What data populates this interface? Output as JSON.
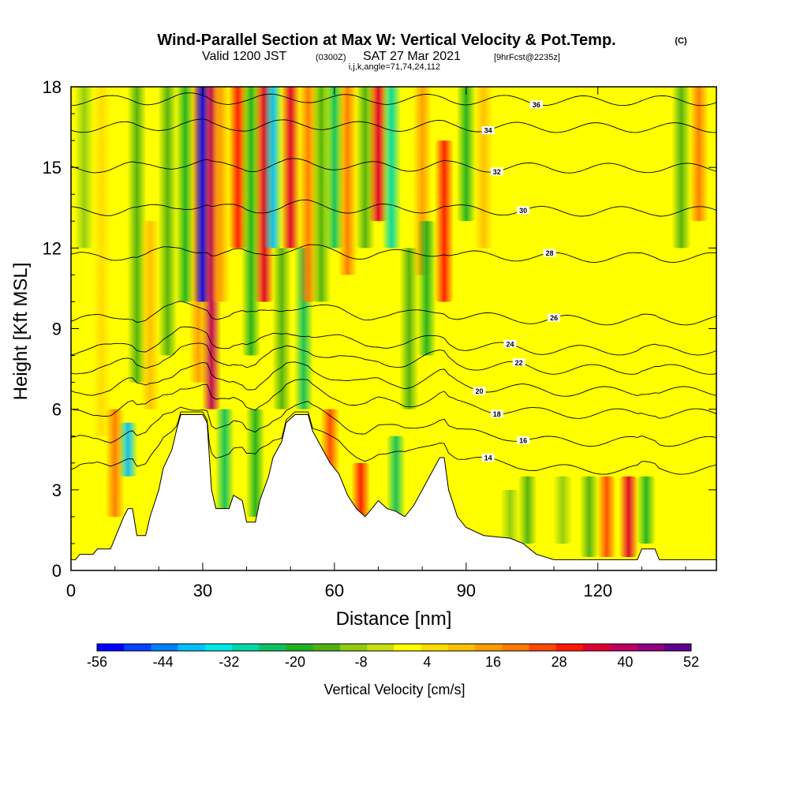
{
  "header": {
    "title": "Wind-Parallel Section at Max W: Vertical Velocity & Pot.Temp.",
    "copyright": "(C)",
    "valid_prefix": "Valid 1200 JST",
    "valid_utc": "(0300Z)",
    "valid_date": "SAT 27 Mar 2021",
    "forecast": "[9hrFcst@2235z]",
    "indices": "i,j,k,angle=71,74,24,112"
  },
  "chart_data": {
    "type": "heatmap",
    "xlabel": "Distance [nm]",
    "ylabel": "Height [Kft MSL]",
    "xlim": [
      0,
      147
    ],
    "ylim": [
      0,
      18
    ],
    "x_ticks": [
      0,
      30,
      60,
      90,
      120
    ],
    "x_tick_labels": [
      "0",
      "30",
      "60",
      "90",
      "120"
    ],
    "y_ticks": [
      0,
      3,
      6,
      9,
      12,
      15,
      18
    ],
    "y_tick_labels": [
      "0",
      "3",
      "6",
      "9",
      "12",
      "15",
      "18"
    ],
    "colorbar": {
      "title": "Vertical Velocity [cm/s]",
      "min": -56,
      "max": 52,
      "tick_values": [
        -56,
        -44,
        -32,
        -20,
        -8,
        4,
        16,
        28,
        40,
        52
      ],
      "tick_labels": [
        "-56",
        "-44",
        "-32",
        "-20",
        "-8",
        "4",
        "16",
        "28",
        "40",
        "52"
      ],
      "colors": [
        "#0000ff",
        "#0040ff",
        "#0080ff",
        "#00c0ff",
        "#00e8e8",
        "#00d8a8",
        "#10c060",
        "#20b020",
        "#50b010",
        "#90cc10",
        "#c8e010",
        "#ffff00",
        "#ffdc00",
        "#ffbe00",
        "#ff9c00",
        "#ff7a00",
        "#ff4800",
        "#ff1800",
        "#e00030",
        "#c00060",
        "#900080",
        "#600090"
      ]
    },
    "terrain": [
      [
        0,
        0.4
      ],
      [
        1,
        0.4
      ],
      [
        2,
        0.6
      ],
      [
        5,
        0.6
      ],
      [
        6,
        0.8
      ],
      [
        9,
        0.8
      ],
      [
        10,
        1.2
      ],
      [
        11,
        1.6
      ],
      [
        12,
        2.0
      ],
      [
        13,
        2.3
      ],
      [
        14,
        2.3
      ],
      [
        15,
        1.3
      ],
      [
        17,
        1.3
      ],
      [
        18,
        2.0
      ],
      [
        20,
        3.0
      ],
      [
        21,
        3.8
      ],
      [
        23,
        4.5
      ],
      [
        24,
        5.2
      ],
      [
        25,
        5.8
      ],
      [
        28,
        5.8
      ],
      [
        30,
        5.8
      ],
      [
        31,
        5.5
      ],
      [
        32,
        3.0
      ],
      [
        33,
        2.3
      ],
      [
        36,
        2.3
      ],
      [
        37,
        2.8
      ],
      [
        39,
        2.6
      ],
      [
        40,
        1.8
      ],
      [
        42,
        1.8
      ],
      [
        43,
        2.6
      ],
      [
        45,
        3.5
      ],
      [
        46,
        4.2
      ],
      [
        48,
        4.8
      ],
      [
        49,
        5.5
      ],
      [
        51,
        5.8
      ],
      [
        54,
        5.8
      ],
      [
        55,
        5.2
      ],
      [
        57,
        4.6
      ],
      [
        59,
        4.0
      ],
      [
        61,
        3.6
      ],
      [
        63,
        2.8
      ],
      [
        65,
        2.3
      ],
      [
        67,
        2.0
      ],
      [
        68,
        2.2
      ],
      [
        70,
        2.6
      ],
      [
        72,
        2.3
      ],
      [
        74,
        2.2
      ],
      [
        76,
        2.0
      ],
      [
        78,
        2.4
      ],
      [
        80,
        3.0
      ],
      [
        82,
        3.6
      ],
      [
        84,
        4.2
      ],
      [
        85,
        4.2
      ],
      [
        86,
        3.0
      ],
      [
        88,
        2.0
      ],
      [
        90,
        1.6
      ],
      [
        94,
        1.3
      ],
      [
        100,
        1.2
      ],
      [
        103,
        1.0
      ],
      [
        106,
        0.6
      ],
      [
        110,
        0.4
      ],
      [
        119,
        0.4
      ],
      [
        129,
        0.4
      ],
      [
        130,
        0.8
      ],
      [
        133,
        0.8
      ],
      [
        134,
        0.4
      ],
      [
        147,
        0.4
      ]
    ],
    "theta_contours": [
      {
        "label": "14",
        "h": 4.0,
        "label_x": 95
      },
      {
        "label": "16",
        "h": 5.0,
        "label_x": 103
      },
      {
        "label": "18",
        "h": 6.0,
        "label_x": 97
      },
      {
        "label": "20",
        "h": 6.8,
        "label_x": 93
      },
      {
        "label": "22",
        "h": 7.6,
        "label_x": 102
      },
      {
        "label": "24",
        "h": 8.3,
        "label_x": 100
      },
      {
        "label": "26",
        "h": 9.4,
        "label_x": 110
      },
      {
        "label": "28",
        "h": 11.7,
        "label_x": 109
      },
      {
        "label": "30",
        "h": 13.4,
        "label_x": 103
      },
      {
        "label": "32",
        "h": 15.0,
        "label_x": 97
      },
      {
        "label": "34",
        "h": 16.5,
        "label_x": 95
      },
      {
        "label": "36",
        "h": 17.5,
        "label_x": 106
      }
    ],
    "velocity_bands": [
      {
        "x": 3,
        "w": -8,
        "top": 18,
        "bottom": 12
      },
      {
        "x": 7,
        "w": 6,
        "top": 18,
        "bottom": 5
      },
      {
        "x": 10,
        "w": 22,
        "top": 6,
        "bottom": 2
      },
      {
        "x": 13,
        "w": -40,
        "top": 5.5,
        "bottom": 3.5
      },
      {
        "x": 15,
        "w": -14,
        "top": 18,
        "bottom": 7
      },
      {
        "x": 18,
        "w": 12,
        "top": 13,
        "bottom": 6
      },
      {
        "x": 22,
        "w": -16,
        "top": 18,
        "bottom": 8
      },
      {
        "x": 26,
        "w": -20,
        "top": 18,
        "bottom": 10
      },
      {
        "x": 29,
        "w": 14,
        "top": 18,
        "bottom": 7
      },
      {
        "x": 30,
        "w": -52,
        "top": 18,
        "bottom": 10
      },
      {
        "x": 32,
        "w": 40,
        "top": 18,
        "bottom": 6
      },
      {
        "x": 34,
        "w": 16,
        "top": 18,
        "bottom": 10
      },
      {
        "x": 35,
        "w": -22,
        "top": 6,
        "bottom": 2
      },
      {
        "x": 38,
        "w": 28,
        "top": 18,
        "bottom": 12
      },
      {
        "x": 41,
        "w": -20,
        "top": 18,
        "bottom": 8
      },
      {
        "x": 42,
        "w": -18,
        "top": 6,
        "bottom": 2
      },
      {
        "x": 44,
        "w": 36,
        "top": 18,
        "bottom": 10
      },
      {
        "x": 46,
        "w": -38,
        "top": 18,
        "bottom": 12
      },
      {
        "x": 48,
        "w": -14,
        "top": 12,
        "bottom": 6
      },
      {
        "x": 50,
        "w": 34,
        "top": 18,
        "bottom": 12
      },
      {
        "x": 53,
        "w": -24,
        "top": 12,
        "bottom": 6
      },
      {
        "x": 54,
        "w": 20,
        "top": 18,
        "bottom": 10
      },
      {
        "x": 57,
        "w": -16,
        "top": 18,
        "bottom": 10
      },
      {
        "x": 59,
        "w": 24,
        "top": 6,
        "bottom": 3
      },
      {
        "x": 60,
        "w": -26,
        "top": 18,
        "bottom": 12
      },
      {
        "x": 63,
        "w": 18,
        "top": 18,
        "bottom": 11
      },
      {
        "x": 66,
        "w": 30,
        "top": 4,
        "bottom": 2
      },
      {
        "x": 67,
        "w": -16,
        "top": 18,
        "bottom": 12
      },
      {
        "x": 70,
        "w": 34,
        "top": 18,
        "bottom": 13
      },
      {
        "x": 73,
        "w": -30,
        "top": 18,
        "bottom": 12
      },
      {
        "x": 74,
        "w": -22,
        "top": 5,
        "bottom": 2
      },
      {
        "x": 77,
        "w": -12,
        "top": 12,
        "bottom": 6
      },
      {
        "x": 80,
        "w": 16,
        "top": 18,
        "bottom": 11
      },
      {
        "x": 81,
        "w": -20,
        "top": 13,
        "bottom": 8
      },
      {
        "x": 85,
        "w": 30,
        "top": 16,
        "bottom": 10
      },
      {
        "x": 90,
        "w": -20,
        "top": 18,
        "bottom": 13
      },
      {
        "x": 94,
        "w": 10,
        "top": 18,
        "bottom": 12
      },
      {
        "x": 100,
        "w": -10,
        "top": 3,
        "bottom": 1
      },
      {
        "x": 104,
        "w": -16,
        "top": 3.5,
        "bottom": 1
      },
      {
        "x": 112,
        "w": -10,
        "top": 3.5,
        "bottom": 1
      },
      {
        "x": 118,
        "w": -14,
        "top": 3.5,
        "bottom": 0.5
      },
      {
        "x": 122,
        "w": 24,
        "top": 3.5,
        "bottom": 0.5
      },
      {
        "x": 127,
        "w": 34,
        "top": 3.5,
        "bottom": 0.5
      },
      {
        "x": 131,
        "w": -18,
        "top": 3.5,
        "bottom": 1
      },
      {
        "x": 139,
        "w": -14,
        "top": 18,
        "bottom": 12
      },
      {
        "x": 143,
        "w": 22,
        "top": 18,
        "bottom": 13
      }
    ]
  }
}
